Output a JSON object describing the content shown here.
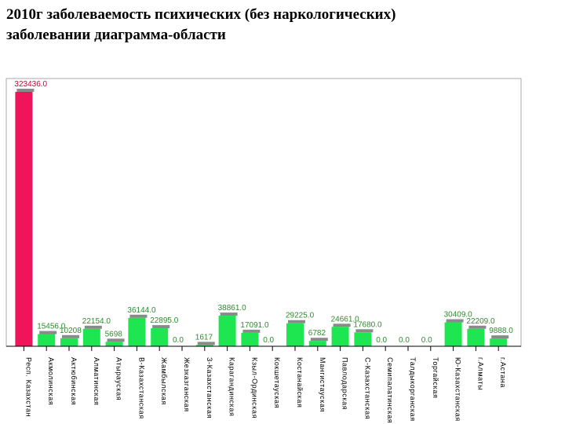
{
  "page": {
    "title_line1": "2010г заболеваемость психических (без наркологических)",
    "title_line2": "заболевании диаграмма-области"
  },
  "chart_data": {
    "type": "bar",
    "title": "",
    "xlabel": "",
    "ylabel": "",
    "categories": [
      "Респ. Казахстан",
      "Акмолинская",
      "Актюбинская",
      "Алматинская",
      "Атырауская",
      "В-Казахстанская",
      "Жамбылская",
      "Жезказганская",
      "З-Казахстанская",
      "Карагандинская",
      "Кзыл-Ординская",
      "Кокшетауская",
      "Костанайская",
      "Мангистауская",
      "Павлодарская",
      "С-Казахстанская",
      "Семипалатинская",
      "Талдыкорганская",
      "Торгайская",
      "Ю-Казахстанская",
      "г.Алматы",
      "г.Астана"
    ],
    "values": [
      323436,
      15456,
      10208,
      22154,
      5698,
      36144,
      22895,
      0,
      1617,
      38861,
      17091,
      0,
      29225,
      6782,
      24661,
      17680,
      0,
      0,
      0,
      30409,
      22209,
      9888
    ],
    "value_labels": [
      "323436.0",
      "15456.0",
      "10208",
      "22154.0",
      "5698",
      "36144.0",
      "22895.0",
      "0.0",
      "1617",
      "38861.0",
      "17091.0",
      "0.0",
      "29225.0",
      "6782",
      "24661.0",
      "17680.0",
      "0.0",
      "0.0",
      "0.0",
      "30409.0",
      "22209.0",
      "9888.0"
    ],
    "ylim": [
      0,
      323436
    ],
    "grid": false,
    "legend": "none",
    "colors": {
      "highlight": "#f0145a",
      "bar": "#1ee650",
      "bar_shadow": "#8a8a8a",
      "highlight_label": "#cc0033",
      "label": "#2e8b2e",
      "frame": "#aaaaaa",
      "axis": "#000000"
    }
  }
}
